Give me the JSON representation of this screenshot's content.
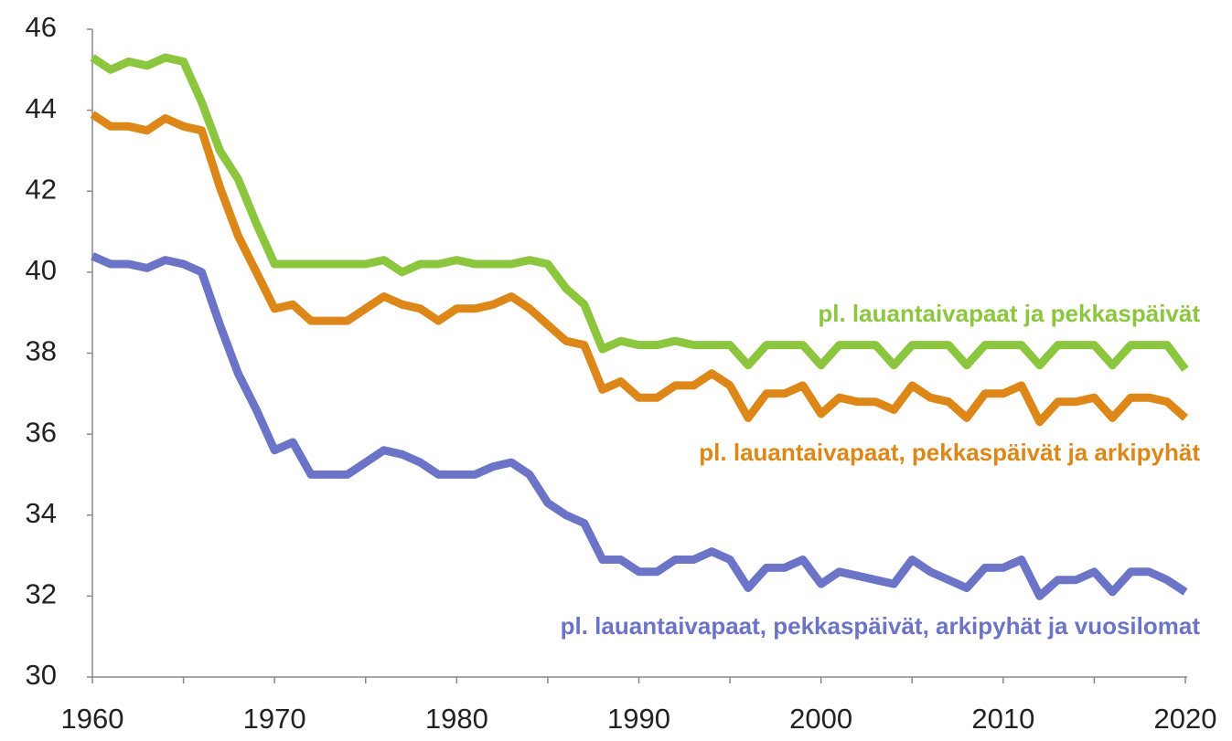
{
  "chart_data": {
    "type": "line",
    "x": [
      1960,
      1961,
      1962,
      1963,
      1964,
      1965,
      1966,
      1967,
      1968,
      1969,
      1970,
      1971,
      1972,
      1973,
      1974,
      1975,
      1976,
      1977,
      1978,
      1979,
      1980,
      1981,
      1982,
      1983,
      1984,
      1985,
      1986,
      1987,
      1988,
      1989,
      1990,
      1991,
      1992,
      1993,
      1994,
      1995,
      1996,
      1997,
      1998,
      1999,
      2000,
      2001,
      2002,
      2003,
      2004,
      2005,
      2006,
      2007,
      2008,
      2009,
      2010,
      2011,
      2012,
      2013,
      2014,
      2015,
      2016,
      2017,
      2018,
      2019,
      2020
    ],
    "series": [
      {
        "name": "pl. lauantaivapaat ja pekkaspäivät",
        "color": "#8cc63f",
        "values": [
          45.3,
          45.0,
          45.2,
          45.1,
          45.3,
          45.2,
          44.2,
          43.0,
          42.3,
          41.2,
          40.2,
          40.2,
          40.2,
          40.2,
          40.2,
          40.2,
          40.3,
          40.0,
          40.2,
          40.2,
          40.3,
          40.2,
          40.2,
          40.2,
          40.3,
          40.2,
          39.6,
          39.2,
          38.1,
          38.3,
          38.2,
          38.2,
          38.3,
          38.2,
          38.2,
          38.2,
          37.7,
          38.2,
          38.2,
          38.2,
          37.7,
          38.2,
          38.2,
          38.2,
          37.7,
          38.2,
          38.2,
          38.2,
          37.7,
          38.2,
          38.2,
          38.2,
          37.7,
          38.2,
          38.2,
          38.2,
          37.7,
          38.2,
          38.2,
          38.2,
          37.6
        ]
      },
      {
        "name": "pl. lauantaivapaat, pekkaspäivät ja arkipyhät",
        "color": "#dc8718",
        "values": [
          43.9,
          43.6,
          43.6,
          43.5,
          43.8,
          43.6,
          43.5,
          42.1,
          40.9,
          40.0,
          39.1,
          39.2,
          38.8,
          38.8,
          38.8,
          39.1,
          39.4,
          39.2,
          39.1,
          38.8,
          39.1,
          39.1,
          39.2,
          39.4,
          39.1,
          38.7,
          38.3,
          38.2,
          37.1,
          37.3,
          36.9,
          36.9,
          37.2,
          37.2,
          37.5,
          37.2,
          36.4,
          37.0,
          37.0,
          37.2,
          36.5,
          36.9,
          36.8,
          36.8,
          36.6,
          37.2,
          36.9,
          36.8,
          36.4,
          37.0,
          37.0,
          37.2,
          36.3,
          36.8,
          36.8,
          36.9,
          36.4,
          36.9,
          36.9,
          36.8,
          36.4
        ]
      },
      {
        "name": "pl. lauantaivapaat, pekkaspäivät, arkipyhät ja vuosilomat",
        "color": "#6b74c6",
        "values": [
          40.4,
          40.2,
          40.2,
          40.1,
          40.3,
          40.2,
          40.0,
          38.7,
          37.5,
          36.6,
          35.6,
          35.8,
          35.0,
          35.0,
          35.0,
          35.3,
          35.6,
          35.5,
          35.3,
          35.0,
          35.0,
          35.0,
          35.2,
          35.3,
          35.0,
          34.3,
          34.0,
          33.8,
          32.9,
          32.9,
          32.6,
          32.6,
          32.9,
          32.9,
          33.1,
          32.9,
          32.2,
          32.7,
          32.7,
          32.9,
          32.3,
          32.6,
          32.5,
          32.4,
          32.3,
          32.9,
          32.6,
          32.4,
          32.2,
          32.7,
          32.7,
          32.9,
          32.0,
          32.4,
          32.4,
          32.6,
          32.1,
          32.6,
          32.6,
          32.4,
          32.1
        ]
      }
    ],
    "xlim": [
      1960,
      2020
    ],
    "xticks": [
      1960,
      1970,
      1980,
      1990,
      2000,
      2010,
      2020
    ],
    "xticks_minor": [
      1965,
      1975,
      1985,
      1995,
      2005,
      2015
    ],
    "ylim": [
      30,
      46
    ],
    "yticks": [
      30,
      32,
      34,
      36,
      38,
      40,
      42,
      44,
      46
    ],
    "grid": false
  }
}
